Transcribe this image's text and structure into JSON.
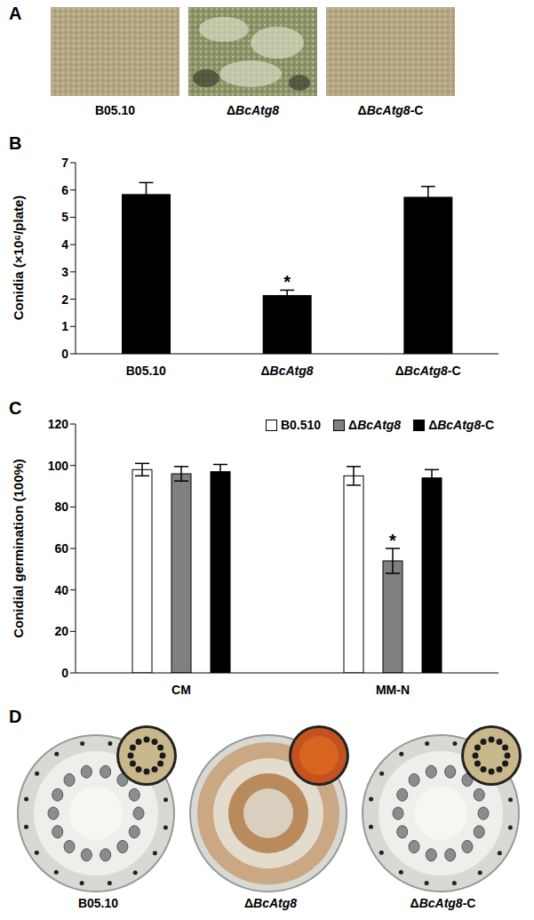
{
  "figure": {
    "panels": [
      {
        "label": "A",
        "captions": [
          "B05.10",
          "ΔBcAtg8",
          "ΔBcAtg8-C"
        ]
      },
      {
        "label": "D",
        "captions": [
          "B05.10",
          "ΔBcAtg8",
          "ΔBcAtg8-C"
        ]
      }
    ]
  },
  "chart_data": [
    {
      "type": "bar",
      "title": "B",
      "y_label": "Conidia (×10⁶/plate)",
      "categories": [
        "B05.10",
        "ΔBcAtg8",
        "ΔBcAtg8-C"
      ],
      "values": [
        5.85,
        2.15,
        5.75
      ],
      "errors": [
        0.42,
        0.18,
        0.38
      ],
      "color": "#000000",
      "ylim": [
        0,
        7
      ],
      "yticks": [
        0,
        1,
        2,
        3,
        4,
        5,
        6,
        7
      ],
      "annotations": [
        {
          "category": "ΔBcAtg8",
          "text": "*"
        }
      ]
    },
    {
      "type": "bar",
      "title": "C",
      "y_label": "Conidial germination (100%)",
      "categories": [
        "CM",
        "MM-N"
      ],
      "series": [
        {
          "name": "B0.510",
          "color": "#ffffff",
          "values": [
            98,
            95
          ],
          "errors": [
            3,
            4.5
          ]
        },
        {
          "name": "ΔBcAtg8",
          "color": "#808080",
          "values": [
            96,
            54
          ],
          "errors": [
            3.5,
            6
          ]
        },
        {
          "name": "ΔBcAtg8-C",
          "color": "#000000",
          "values": [
            97,
            94
          ],
          "errors": [
            3.5,
            4
          ]
        }
      ],
      "ylim": [
        0,
        120
      ],
      "yticks": [
        0,
        20,
        40,
        60,
        80,
        100,
        120
      ],
      "legend": "upper right",
      "annotations": [
        {
          "category": "MM-N",
          "series": "ΔBcAtg8",
          "text": "*"
        }
      ]
    }
  ]
}
